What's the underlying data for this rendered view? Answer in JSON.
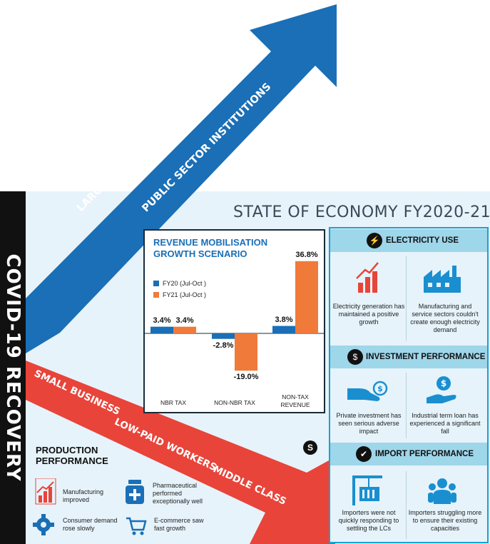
{
  "vertical_title": "COVID-19 RECOVERY",
  "up_arrow": {
    "label_1": "LARGE BUSINESS",
    "label_2": "PUBLIC SECTOR INSTITUTIONS",
    "color": "#1a6fb6"
  },
  "down_arrow": {
    "label_1": "SMALL BUSINESS",
    "label_2": "LOW-PAID WORKERS",
    "label_3": "MIDDLE CLASS",
    "color": "#e8443a"
  },
  "main_title": "STATE OF ECONOMY FY2020-21",
  "revenue_chart": {
    "title_line1": "REVENUE MOBILISATION",
    "title_line2": "GROWTH SCENARIO"
  },
  "chart_data": {
    "type": "bar",
    "title": "REVENUE MOBILISATION GROWTH SCENARIO",
    "categories": [
      "NBR TAX",
      "NON-NBR TAX",
      "NON-TAX REVENUE"
    ],
    "category_labels": [
      [
        "NBR TAX"
      ],
      [
        "NON-NBR TAX"
      ],
      [
        "NON-TAX",
        "REVENUE"
      ]
    ],
    "series": [
      {
        "name": "FY20 (Jul-Oct )",
        "values": [
          3.4,
          -2.8,
          3.8
        ],
        "value_labels": [
          "3.4%",
          "-2.8%",
          "3.8%"
        ],
        "color": "#1a6fb6"
      },
      {
        "name": "FY21 (Jul-Oct )",
        "values": [
          3.4,
          -19.0,
          36.8
        ],
        "value_labels": [
          "3.4%",
          "-19.0%",
          "36.8%"
        ],
        "color": "#f07a3a"
      }
    ],
    "unit": "%",
    "ylim": [
      -19.0,
      36.8
    ],
    "legend": "top-left",
    "grid": false
  },
  "sections": {
    "electricity": {
      "title": "ELECTRICITY USE",
      "item1": "Electricity generation has maintained a positive growth",
      "item2": "Manufacturing and service sectors couldn't create enough electricity demand"
    },
    "investment": {
      "title": "INVESTMENT PERFORMANCE",
      "item1": "Private investment has seen serious adverse impact",
      "item2": "Industrial term loan has experienced a significant fall"
    },
    "import": {
      "title": "IMPORT PERFORMANCE",
      "item1": "Importers were not quickly responding to settling the LCs",
      "item2": "Importers struggling more to ensure their existing capacities"
    }
  },
  "production": {
    "title_line1": "PRODUCTION",
    "title_line2": "PERFORMANCE",
    "item1": "Manufacturing improved",
    "item2": "Pharmaceutical performed exceptionally well",
    "item3": "Consumer demand rose slowly",
    "item4": "E-commerce saw fast growth"
  },
  "logo_letter": "S",
  "colors": {
    "blue": "#1a6fb6",
    "orange": "#f07a3a",
    "red": "#e8443a",
    "panel": "#e6f3fa",
    "section_head": "#9ed6ea",
    "border": "#1e9fd0"
  }
}
